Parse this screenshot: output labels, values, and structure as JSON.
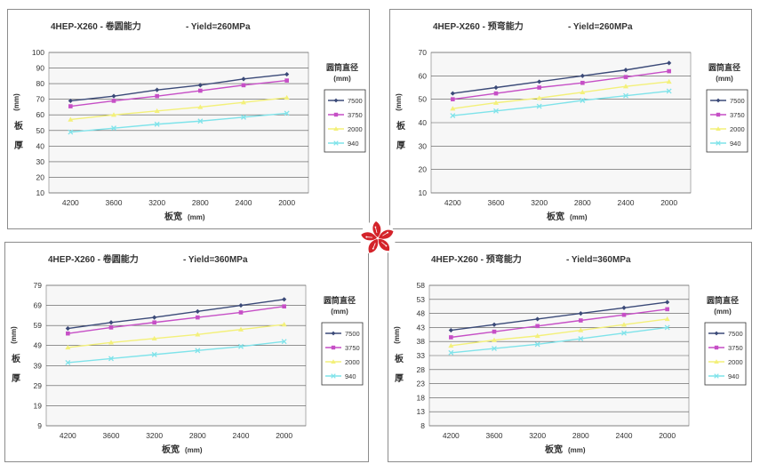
{
  "units": "(mm)",
  "legend_title": "圆筒直径",
  "legend_unit": "(mm)",
  "xlabel": "板宽",
  "ylabel_chars": [
    "板",
    "厚"
  ],
  "series_names": [
    "7500",
    "3750",
    "2000",
    "940"
  ],
  "series_colors": [
    "#3b4a78",
    "#c64fc6",
    "#f3f07a",
    "#7fe3ea"
  ],
  "categories": [
    "4200",
    "3600",
    "3200",
    "2800",
    "2400",
    "2000"
  ],
  "emblem": "hong-kong-bauhinia-emblem",
  "chart_data": [
    {
      "type": "line",
      "title_left": "4HEP-X260 - 卷圆能力",
      "title_right": "- Yield=260MPa",
      "categories": [
        "4200",
        "3600",
        "3200",
        "2800",
        "2400",
        "2000"
      ],
      "yticks": [
        10,
        20,
        30,
        40,
        50,
        60,
        70,
        80,
        90,
        100
      ],
      "ylim": [
        10,
        100
      ],
      "series": [
        {
          "name": "7500",
          "values": [
            69,
            72,
            76,
            79,
            83,
            86
          ]
        },
        {
          "name": "3750",
          "values": [
            65.5,
            69,
            72,
            75.5,
            79,
            82
          ]
        },
        {
          "name": "2000",
          "values": [
            57,
            60,
            62.5,
            65,
            68,
            71
          ]
        },
        {
          "name": "940",
          "values": [
            49,
            51.5,
            54,
            56,
            58.5,
            61
          ]
        }
      ]
    },
    {
      "type": "line",
      "title_left": "4HEP-X260 - 预弯能力",
      "title_right": "- Yield=260MPa",
      "categories": [
        "4200",
        "3600",
        "3200",
        "2800",
        "2400",
        "2000"
      ],
      "yticks": [
        10,
        20,
        30,
        40,
        50,
        60,
        70
      ],
      "ylim": [
        10,
        70
      ],
      "series": [
        {
          "name": "7500",
          "values": [
            52.5,
            55,
            57.5,
            60,
            62.5,
            65.5
          ]
        },
        {
          "name": "3750",
          "values": [
            50,
            52.5,
            55,
            57,
            59.5,
            62
          ]
        },
        {
          "name": "2000",
          "values": [
            46,
            48.5,
            50.5,
            53,
            55.5,
            57.5
          ]
        },
        {
          "name": "940",
          "values": [
            43,
            45,
            47,
            49.5,
            51.5,
            53.5
          ]
        }
      ]
    },
    {
      "type": "line",
      "title_left": "4HEP-X260 - 卷圆能力",
      "title_right": "- Yield=360MPa",
      "categories": [
        "4200",
        "3600",
        "3200",
        "2800",
        "2400",
        "2000"
      ],
      "yticks": [
        9,
        19,
        29,
        39,
        49,
        59,
        69,
        79
      ],
      "ylim": [
        9,
        79
      ],
      "series": [
        {
          "name": "7500",
          "values": [
            57.5,
            60.5,
            63,
            66,
            69,
            72
          ]
        },
        {
          "name": "3750",
          "values": [
            55,
            58,
            60.5,
            63,
            65.5,
            68.5
          ]
        },
        {
          "name": "2000",
          "values": [
            48,
            50.5,
            52.5,
            54.5,
            57,
            59.5
          ]
        },
        {
          "name": "940",
          "values": [
            40.5,
            42.5,
            44.5,
            46.5,
            48.5,
            51
          ]
        }
      ]
    },
    {
      "type": "line",
      "title_left": "4HEP-X260 - 预弯能力",
      "title_right": "- Yield=360MPa",
      "categories": [
        "4200",
        "3600",
        "3200",
        "2800",
        "2400",
        "2000"
      ],
      "yticks": [
        8,
        13,
        18,
        23,
        28,
        33,
        38,
        43,
        48,
        53,
        58
      ],
      "ylim": [
        8,
        58
      ],
      "series": [
        {
          "name": "7500",
          "values": [
            42,
            44,
            46,
            48,
            50,
            52
          ]
        },
        {
          "name": "3750",
          "values": [
            39.5,
            41.5,
            43.5,
            45.5,
            47.5,
            49.5
          ]
        },
        {
          "name": "2000",
          "values": [
            36.5,
            38.5,
            40,
            42,
            44,
            46
          ]
        },
        {
          "name": "940",
          "values": [
            34,
            35.5,
            37,
            39,
            41,
            43
          ]
        }
      ]
    }
  ]
}
